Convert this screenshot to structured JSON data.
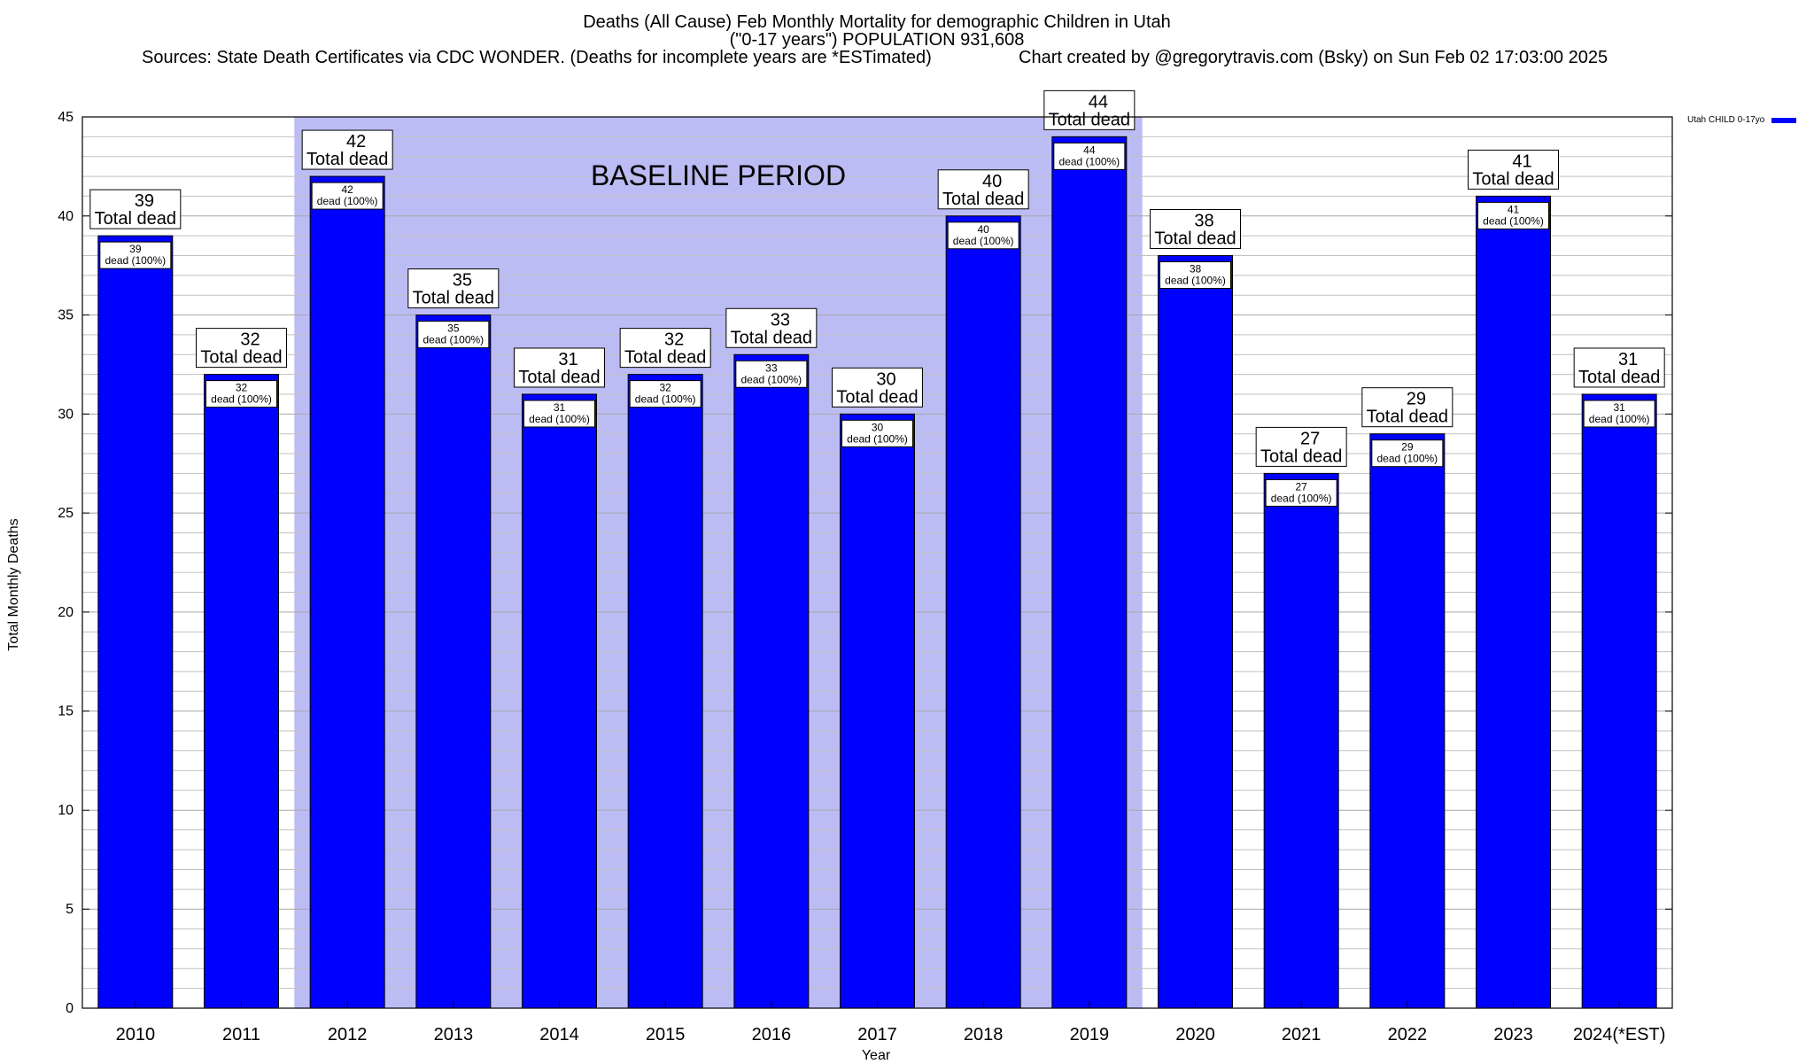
{
  "header": {
    "title": "Deaths (All Cause) Feb Monthly Mortality for demographic Children in Utah",
    "subtitle": "(\"0-17 years\") POPULATION 931,608",
    "source": "Sources: State Death Certificates via CDC WONDER. (Deaths for incomplete years are *ESTimated)",
    "credit": "Chart created by @gregorytravis.com (Bsky) on Sun Feb 02 17:03:00 2025"
  },
  "chart_data": {
    "type": "bar",
    "xlabel": "Year",
    "ylabel": "Total Monthly Deaths",
    "ylim": [
      0,
      45
    ],
    "yticks": [
      0,
      5,
      10,
      15,
      20,
      25,
      30,
      35,
      40,
      45
    ],
    "grid": true,
    "legend_position": "top-right",
    "categories": [
      "2010",
      "2011",
      "2012",
      "2013",
      "2014",
      "2015",
      "2016",
      "2017",
      "2018",
      "2019",
      "2020",
      "2021",
      "2022",
      "2023",
      "2024(*EST)"
    ],
    "series": [
      {
        "name": "Utah CHILD 0-17yo",
        "color": "#0000ff",
        "values": [
          39,
          32,
          42,
          35,
          31,
          32,
          33,
          30,
          40,
          44,
          38,
          27,
          29,
          41,
          31
        ]
      }
    ],
    "top_label_suffix": "Total dead",
    "inner_label_suffix": "dead (100%)",
    "baseline_period": {
      "label": "BASELINE PERIOD",
      "from": "2012",
      "to": "2019",
      "color": "#bcbcf5"
    },
    "colors": {
      "bar": "#0000ff",
      "bar_outline": "#000000",
      "grid": "#c0c0c0"
    }
  }
}
